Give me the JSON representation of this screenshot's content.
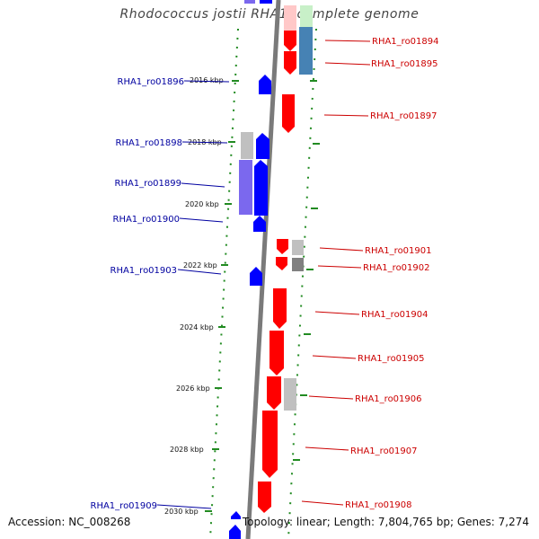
{
  "title": "Rhodococcus jostii RHA1, complete genome",
  "footer": {
    "accession": "Accession: NC_008268",
    "topology": "Topology: linear; Length: 7,804,765 bp; Genes: 7,274"
  },
  "colors": {
    "forward_gene": "#0000ff",
    "reverse_gene": "#ff0000",
    "forward_label": "#0000a0",
    "reverse_label": "#cc0000",
    "backbone": "#808080",
    "tick": "#228b22"
  },
  "scale_labels": [
    "2016 kbp",
    "2018 kbp",
    "2020 kbp",
    "2022 kbp",
    "2024 kbp",
    "2026 kbp",
    "2028 kbp",
    "2030 kbp"
  ],
  "reverse_genes": [
    "RHA1_ro01894",
    "RHA1_ro01895",
    "RHA1_ro01897",
    "RHA1_ro01901",
    "RHA1_ro01902",
    "RHA1_ro01904",
    "RHA1_ro01905",
    "RHA1_ro01906",
    "RHA1_ro01907",
    "RHA1_ro01908"
  ],
  "forward_genes": [
    "RHA1_ro01896",
    "RHA1_ro01898",
    "RHA1_ro01899",
    "RHA1_ro01900",
    "RHA1_ro01903",
    "RHA1_ro01909"
  ]
}
